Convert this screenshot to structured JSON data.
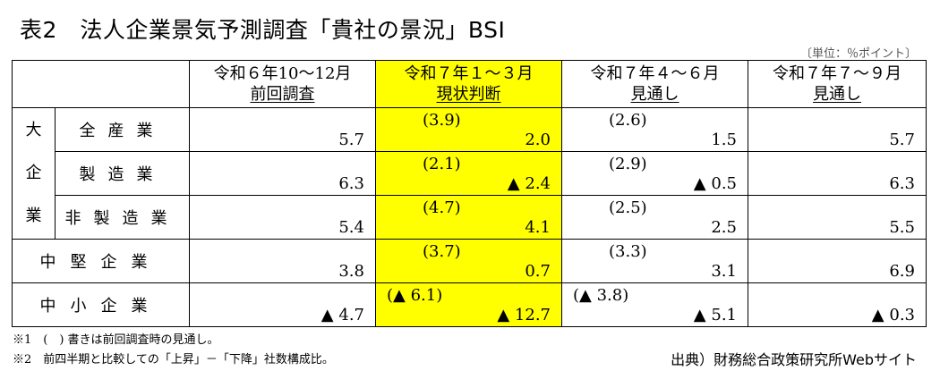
{
  "title": "表2　法人企業景気予測調査「貴社の景況」BSI",
  "unit": "〔単位：％ポイント〕",
  "headers": [
    {
      "line1": "令和６年10～12月",
      "line2": "前回調査"
    },
    {
      "line1": "令和７年１～３月",
      "line2": "現状判断"
    },
    {
      "line1": "令和７年４～６月",
      "line2": "見通し"
    },
    {
      "line1": "令和７年７～９月",
      "line2": "見通し"
    }
  ],
  "group_label": [
    "大",
    "企",
    "業"
  ],
  "rows": [
    {
      "label": "全産業",
      "c1": "5.7",
      "c2_prev": "(3.9)",
      "c2": "2.0",
      "c3_prev": "(2.6)",
      "c3": "1.5",
      "c4": "5.7"
    },
    {
      "label": "製造業",
      "c1": "6.3",
      "c2_prev": "(2.1)",
      "c2": "▲ 2.4",
      "c3_prev": "(2.9)",
      "c3": "▲ 0.5",
      "c4": "6.3"
    },
    {
      "label": "非製造業",
      "c1": "5.4",
      "c2_prev": "(4.7)",
      "c2": "4.1",
      "c3_prev": "(2.5)",
      "c3": "2.5",
      "c4": "5.5"
    },
    {
      "label": "中堅企業",
      "c1": "3.8",
      "c2_prev": "(3.7)",
      "c2": "0.7",
      "c3_prev": "(3.3)",
      "c3": "3.1",
      "c4": "6.9"
    },
    {
      "label": "中小企業",
      "c1": "▲ 4.7",
      "c2_prev": "(▲ 6.1)",
      "c2": "▲ 12.7",
      "c3_prev": "(▲ 3.8)",
      "c3": "▲ 5.1",
      "c4": "▲ 0.3"
    }
  ],
  "notes": [
    "※1　(　) 書きは前回調査時の見通し。",
    "※2　前四半期と比較しての「上昇」－「下降」社数構成比。"
  ],
  "source": "出典）財務総合政策研究所Webサイト",
  "highlight_color": "#ffff00"
}
